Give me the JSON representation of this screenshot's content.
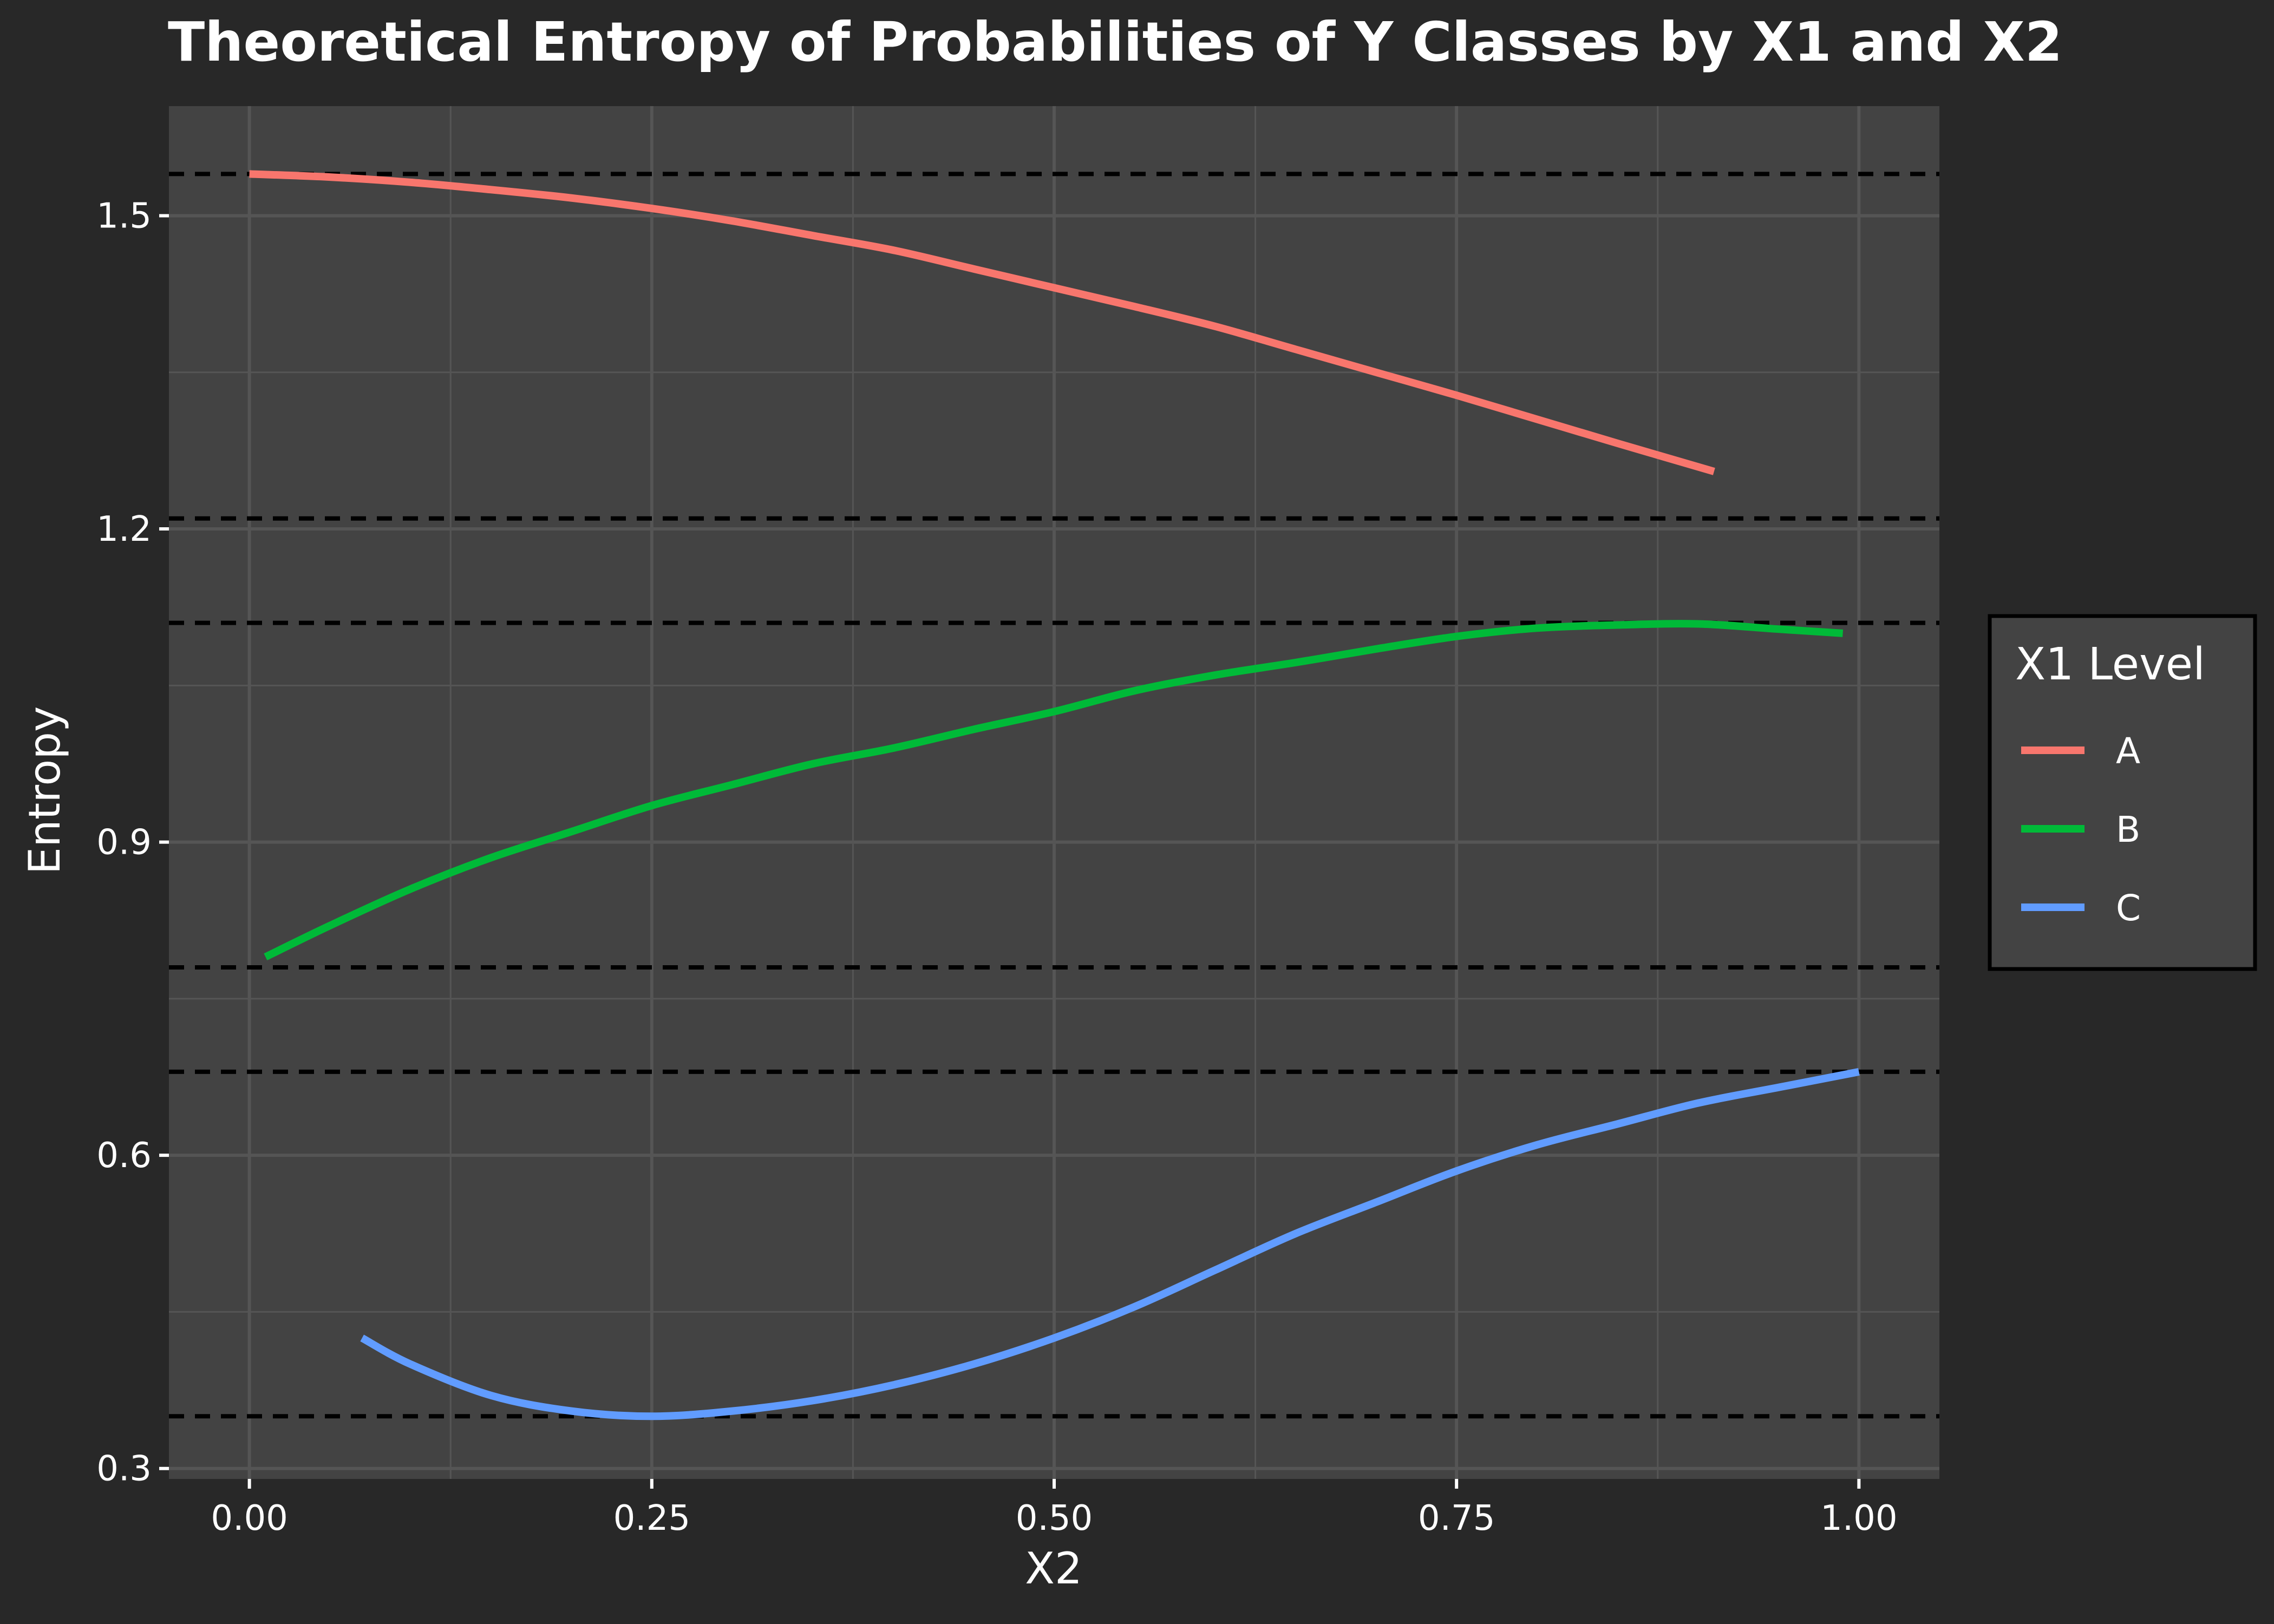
{
  "chart_data": {
    "type": "line",
    "title": "Theoretical Entropy of Probabilities of Y Classes by X1 and X2",
    "xlabel": "X2",
    "ylabel": "Entropy",
    "xlim": [
      -0.05,
      1.05
    ],
    "ylim": [
      0.29,
      1.605
    ],
    "x_ticks": [
      0.0,
      0.25,
      0.5,
      0.75,
      1.0
    ],
    "x_tick_labels": [
      "0.00",
      "0.25",
      "0.50",
      "0.75",
      "1.00"
    ],
    "y_ticks": [
      0.3,
      0.6,
      0.9,
      1.2,
      1.5
    ],
    "y_tick_labels": [
      "0.3",
      "0.6",
      "0.9",
      "1.2",
      "1.5"
    ],
    "grid": true,
    "legend": {
      "title": "X1 Level",
      "position": "right"
    },
    "reference_lines_y": [
      1.54,
      1.21,
      1.11,
      0.78,
      0.68,
      0.35
    ],
    "colors": {
      "background": "#282828",
      "panel": "#434343",
      "grid": "#555555",
      "reference_line": "#000000",
      "text": "#ffffff"
    },
    "series": [
      {
        "name": "A",
        "color": "#F8766D",
        "x": [
          0.0,
          0.05,
          0.1,
          0.15,
          0.2,
          0.25,
          0.3,
          0.35,
          0.4,
          0.45,
          0.5,
          0.55,
          0.6,
          0.65,
          0.7,
          0.75,
          0.8,
          0.85,
          0.91
        ],
        "y": [
          1.54,
          1.537,
          1.532,
          1.525,
          1.517,
          1.507,
          1.495,
          1.481,
          1.467,
          1.449,
          1.431,
          1.413,
          1.394,
          1.372,
          1.35,
          1.328,
          1.305,
          1.282,
          1.255
        ]
      },
      {
        "name": "B",
        "color": "#00BA38",
        "x": [
          0.01,
          0.05,
          0.1,
          0.15,
          0.2,
          0.25,
          0.3,
          0.35,
          0.4,
          0.45,
          0.5,
          0.55,
          0.6,
          0.65,
          0.7,
          0.75,
          0.8,
          0.85,
          0.9,
          0.95,
          0.99
        ],
        "y": [
          0.79,
          0.82,
          0.855,
          0.885,
          0.91,
          0.935,
          0.955,
          0.975,
          0.99,
          1.008,
          1.025,
          1.045,
          1.06,
          1.072,
          1.085,
          1.097,
          1.105,
          1.108,
          1.109,
          1.104,
          1.1
        ]
      },
      {
        "name": "C",
        "color": "#619CFF",
        "x": [
          0.07,
          0.1,
          0.15,
          0.2,
          0.25,
          0.3,
          0.35,
          0.4,
          0.45,
          0.5,
          0.55,
          0.6,
          0.65,
          0.7,
          0.75,
          0.8,
          0.85,
          0.9,
          0.95,
          1.0
        ],
        "y": [
          0.425,
          0.4,
          0.37,
          0.355,
          0.35,
          0.355,
          0.365,
          0.38,
          0.4,
          0.425,
          0.455,
          0.49,
          0.525,
          0.555,
          0.585,
          0.61,
          0.63,
          0.65,
          0.665,
          0.68
        ]
      }
    ]
  }
}
